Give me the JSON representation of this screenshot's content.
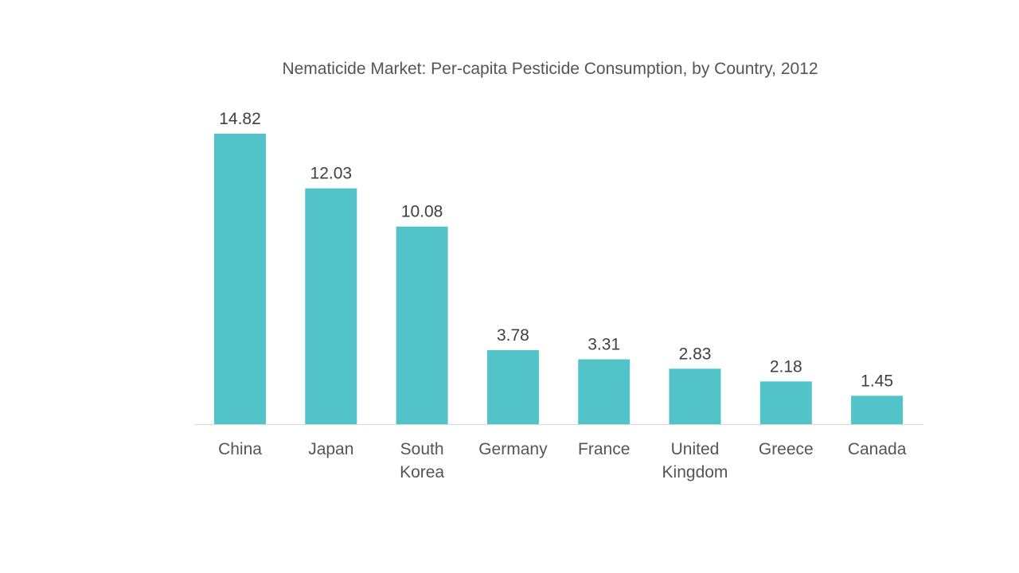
{
  "chart_data": {
    "type": "bar",
    "title": "Nematicide Market: Per-capita Pesticide Consumption, by Country, 2012",
    "categories": [
      [
        "China"
      ],
      [
        "Japan"
      ],
      [
        "South",
        "Korea"
      ],
      [
        "Germany"
      ],
      [
        "France"
      ],
      [
        "United",
        "Kingdom"
      ],
      [
        "Greece"
      ],
      [
        "Canada"
      ]
    ],
    "values": [
      14.82,
      12.03,
      10.08,
      3.78,
      3.31,
      2.83,
      2.18,
      1.45
    ],
    "value_labels": [
      "14.82",
      "12.03",
      "10.08",
      "3.78",
      "3.31",
      "2.83",
      "2.18",
      "1.45"
    ],
    "xlabel": "",
    "ylabel": "",
    "ylim": [
      0,
      15
    ],
    "grid": false,
    "legend": "none",
    "bar_color": "#52C4C9",
    "axis_color": "#D9D9D9"
  }
}
